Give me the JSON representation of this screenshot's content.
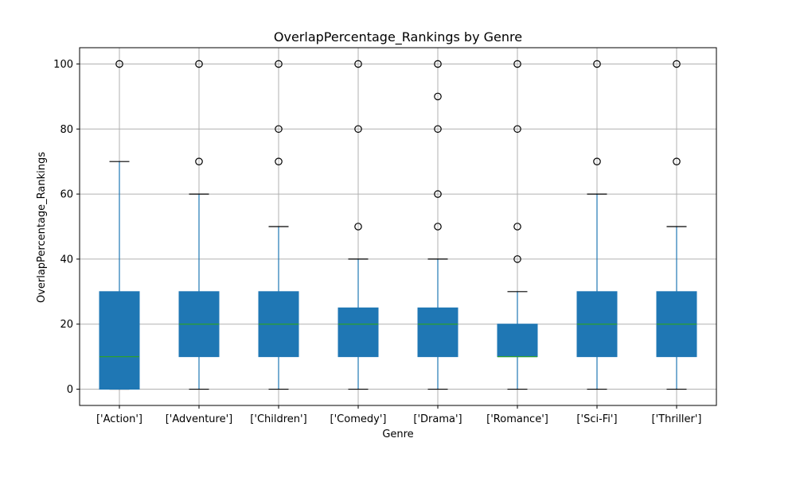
{
  "chart_data": {
    "type": "box",
    "title": "OverlapPercentage_Rankings by Genre",
    "xlabel": "Genre",
    "ylabel": "OverlapPercentage_Rankings",
    "ylim": [
      -5,
      105
    ],
    "yticks": [
      0,
      20,
      40,
      60,
      80,
      100
    ],
    "grid": true,
    "box_color": "#1f77b4",
    "median_color": "#2ca02c",
    "categories": [
      "['Action']",
      "['Adventure']",
      "['Children']",
      "['Comedy']",
      "['Drama']",
      "['Romance']",
      "['Sci-Fi']",
      "['Thriller']"
    ],
    "boxes": [
      {
        "q1": 0,
        "median": 10,
        "q3": 30,
        "whisker_low": 0,
        "whisker_high": 70,
        "outliers": [
          100
        ]
      },
      {
        "q1": 10,
        "median": 20,
        "q3": 30,
        "whisker_low": 0,
        "whisker_high": 60,
        "outliers": [
          70,
          100
        ]
      },
      {
        "q1": 10,
        "median": 20,
        "q3": 30,
        "whisker_low": 0,
        "whisker_high": 50,
        "outliers": [
          70,
          80,
          100
        ]
      },
      {
        "q1": 10,
        "median": 20,
        "q3": 25,
        "whisker_low": 0,
        "whisker_high": 40,
        "outliers": [
          50,
          80,
          100
        ]
      },
      {
        "q1": 10,
        "median": 20,
        "q3": 25,
        "whisker_low": 0,
        "whisker_high": 40,
        "outliers": [
          50,
          60,
          80,
          90,
          100
        ]
      },
      {
        "q1": 10,
        "median": 10,
        "q3": 20,
        "whisker_low": 0,
        "whisker_high": 30,
        "outliers": [
          40,
          50,
          80,
          100
        ]
      },
      {
        "q1": 10,
        "median": 20,
        "q3": 30,
        "whisker_low": 0,
        "whisker_high": 60,
        "outliers": [
          70,
          100
        ]
      },
      {
        "q1": 10,
        "median": 20,
        "q3": 30,
        "whisker_low": 0,
        "whisker_high": 50,
        "outliers": [
          70,
          100
        ]
      }
    ]
  }
}
